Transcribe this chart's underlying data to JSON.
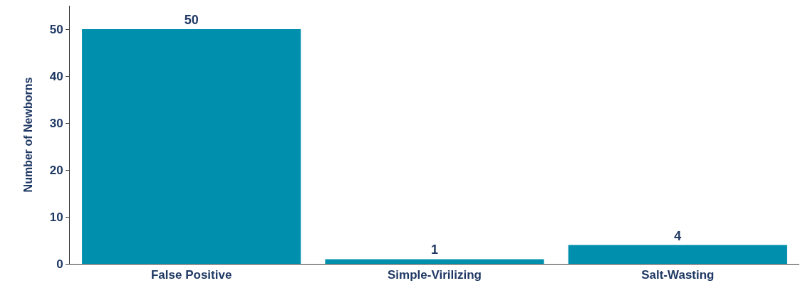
{
  "chart_data": {
    "type": "bar",
    "ylabel": "Number of Newborns",
    "categories": [
      "False Positive",
      "Simple-Virilizing",
      "Salt-Wasting"
    ],
    "values": [
      50,
      1,
      4
    ],
    "color": "#008fac",
    "ylim": [
      0,
      55
    ],
    "yticks": [
      0,
      10,
      20,
      30,
      40,
      50
    ],
    "data_labels": true
  }
}
